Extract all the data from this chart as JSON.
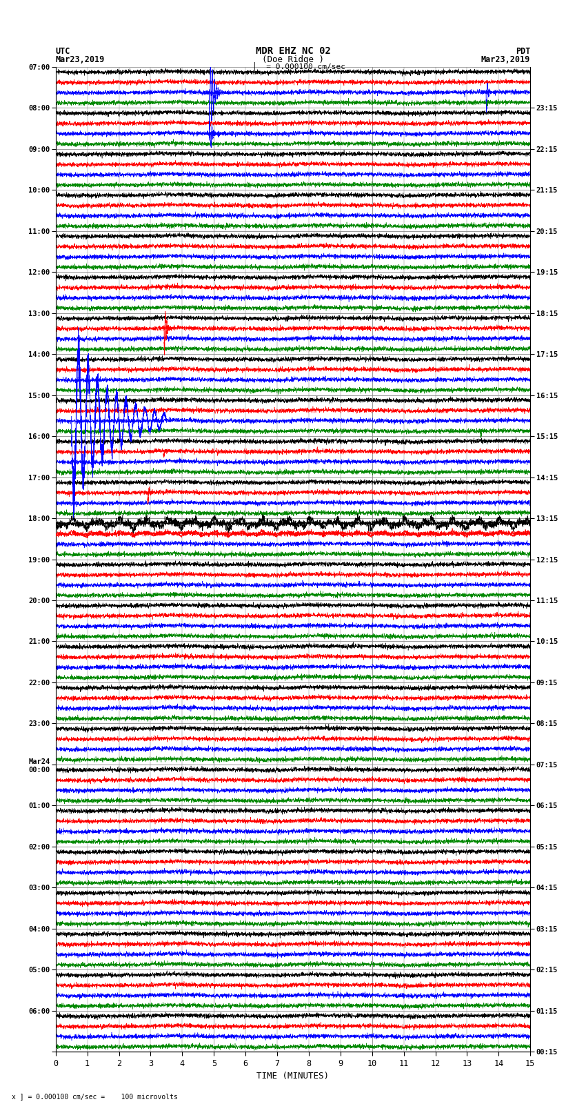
{
  "title_line1": "MDR EHZ NC 02",
  "title_line2": "(Doe Ridge )",
  "scale_text": "= 0.000100 cm/sec",
  "bottom_note": "x ] = 0.000100 cm/sec =    100 microvolts",
  "xlabel": "TIME (MINUTES)",
  "left_times_hourly": [
    "07:00",
    "08:00",
    "09:00",
    "10:00",
    "11:00",
    "12:00",
    "13:00",
    "14:00",
    "15:00",
    "16:00",
    "17:00",
    "18:00",
    "19:00",
    "20:00",
    "21:00",
    "22:00",
    "23:00",
    "Mar24\n00:00",
    "01:00",
    "02:00",
    "03:00",
    "04:00",
    "05:00",
    "06:00"
  ],
  "right_times_hourly": [
    "00:15",
    "01:15",
    "02:15",
    "03:15",
    "04:15",
    "05:15",
    "06:15",
    "07:15",
    "08:15",
    "09:15",
    "10:15",
    "11:15",
    "12:15",
    "13:15",
    "14:15",
    "15:15",
    "16:15",
    "17:15",
    "18:15",
    "19:15",
    "20:15",
    "21:15",
    "22:15",
    "23:15"
  ],
  "num_rows": 24,
  "num_cols": 15,
  "bg_color": "#ffffff",
  "grid_color": "#888888",
  "trace_colors": [
    "#000000",
    "#ff0000",
    "#0000ff",
    "#008800"
  ],
  "fig_width": 8.5,
  "fig_height": 16.13,
  "dpi": 100,
  "plot_bg": "#ffffff",
  "seed": 42
}
